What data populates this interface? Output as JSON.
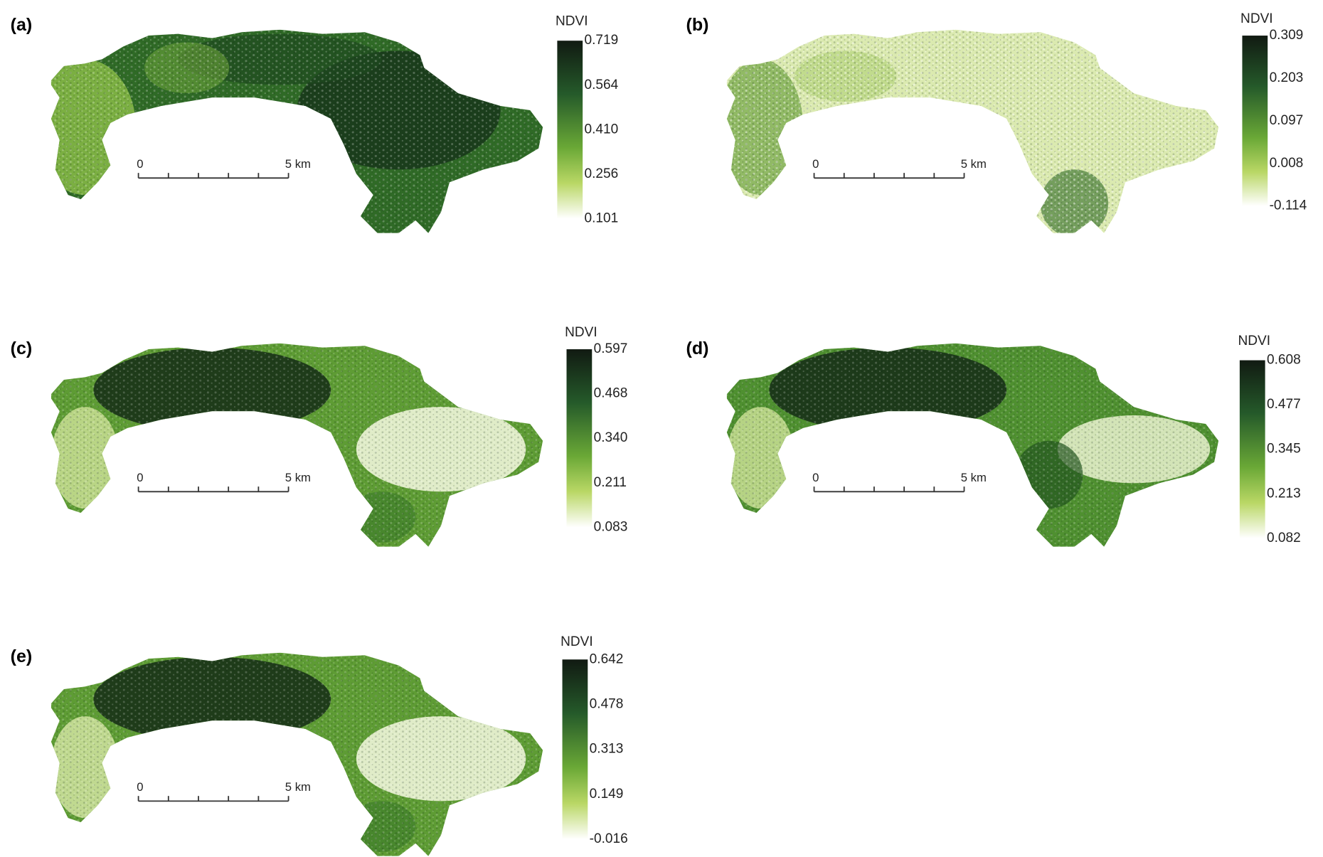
{
  "panels": [
    {
      "label": "(a)",
      "legend_title": "NDVI",
      "legend_ticks": [
        "0.719",
        "0.564",
        "0.410",
        "0.256",
        "0.101"
      ],
      "scale_bar": {
        "start": "0",
        "end": "5 km"
      }
    },
    {
      "label": "(b)",
      "legend_title": "NDVI",
      "legend_ticks": [
        "0.309",
        "0.203",
        "0.097",
        "0.008",
        "-0.114"
      ],
      "scale_bar": {
        "start": "0",
        "end": "5 km"
      }
    },
    {
      "label": "(c)",
      "legend_title": "NDVI",
      "legend_ticks": [
        "0.597",
        "0.468",
        "0.340",
        "0.211",
        "0.083"
      ],
      "scale_bar": {
        "start": "0",
        "end": "5 km"
      }
    },
    {
      "label": "(d)",
      "legend_title": "NDVI",
      "legend_ticks": [
        "0.608",
        "0.477",
        "0.345",
        "0.213",
        "0.082"
      ],
      "scale_bar": {
        "start": "0",
        "end": "5 km"
      }
    },
    {
      "label": "(e)",
      "legend_title": "NDVI",
      "legend_ticks": [
        "0.642",
        "0.478",
        "0.313",
        "0.149",
        "-0.016"
      ],
      "scale_bar": {
        "start": "0",
        "end": "5 km"
      }
    }
  ]
}
